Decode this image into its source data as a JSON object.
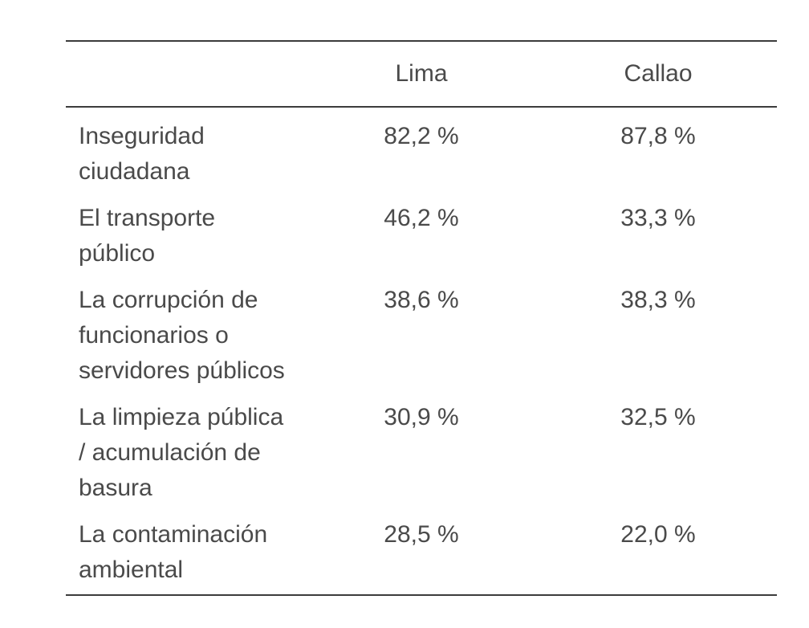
{
  "table": {
    "headers": [
      "",
      "Lima",
      "Callao"
    ],
    "rows": [
      {
        "label_lines": [
          "Inseguridad",
          "ciudadana"
        ],
        "lima": "82,2 %",
        "callao": "87,8 %"
      },
      {
        "label_lines": [
          "El transporte",
          "público"
        ],
        "lima": "46,2 %",
        "callao": "33,3 %"
      },
      {
        "label_lines": [
          "La corrupción de",
          "funcionarios o",
          "servidores públicos"
        ],
        "lima": "38,6 %",
        "callao": "38,3 %"
      },
      {
        "label_lines": [
          "La limpieza pública",
          "/ acumulación de",
          "basura"
        ],
        "lima": "30,9 %",
        "callao": "32,5 %"
      },
      {
        "label_lines": [
          "La contaminación",
          "ambiental"
        ],
        "lima": "28,5 %",
        "callao": "22,0 %"
      }
    ]
  }
}
